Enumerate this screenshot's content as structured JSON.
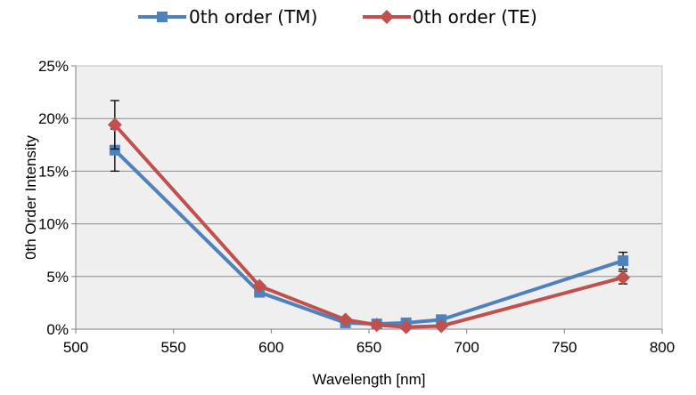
{
  "chart_data": {
    "type": "line",
    "xlabel": "Wavelength [nm]",
    "ylabel": "0th Order Intensity",
    "xlim": [
      500,
      800
    ],
    "ylim": [
      0,
      25
    ],
    "x_ticks": [
      "500",
      "550",
      "600",
      "650",
      "700",
      "750",
      "800"
    ],
    "y_ticks": [
      "0%",
      "5%",
      "10%",
      "15%",
      "20%",
      "25%"
    ],
    "x_tick_values": [
      500,
      550,
      600,
      650,
      700,
      750,
      800
    ],
    "y_tick_values": [
      0,
      5,
      10,
      15,
      20,
      25
    ],
    "y_unit": "%",
    "grid": "horizontal",
    "legend_position": "top",
    "series": [
      {
        "name": "0th order (TM)",
        "color": "#4f81bd",
        "marker": "square",
        "x": [
          520,
          594,
          638,
          654,
          669,
          687,
          780
        ],
        "y": [
          17.0,
          3.5,
          0.6,
          0.5,
          0.6,
          0.9,
          6.5
        ],
        "error": [
          2.0,
          0,
          0,
          0,
          0,
          0,
          0.8
        ]
      },
      {
        "name": "0th order (TE)",
        "color": "#c0504d",
        "marker": "diamond",
        "x": [
          520,
          594,
          638,
          654,
          669,
          687,
          780
        ],
        "y": [
          19.4,
          4.1,
          0.9,
          0.4,
          0.2,
          0.3,
          4.9
        ],
        "error": [
          2.3,
          0,
          0,
          0,
          0,
          0,
          0.6
        ]
      }
    ]
  }
}
